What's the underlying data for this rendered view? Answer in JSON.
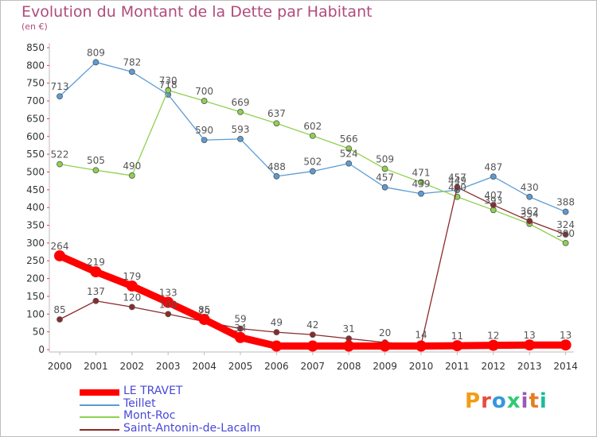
{
  "title": "Evolution du Montant de la Dette par Habitant",
  "subtitle": "(en €)",
  "logo_text": "Proxiti",
  "logo_colors": [
    "#f39c12",
    "#e74c3c",
    "#3498db",
    "#2ecc71",
    "#9b59b6",
    "#e67e22",
    "#1abc9c"
  ],
  "chart_data": {
    "type": "line",
    "title": "Evolution du Montant de la Dette par Habitant",
    "subtitle": "(en €)",
    "xlabel": "",
    "ylabel": "",
    "x": [
      "2000",
      "2001",
      "2002",
      "2003",
      "2004",
      "2005",
      "2006",
      "2007",
      "2008",
      "2009",
      "2010",
      "2011",
      "2012",
      "2013",
      "2014"
    ],
    "ylim": [
      0,
      850
    ],
    "yticks": [
      "0",
      "50",
      "100",
      "150",
      "200",
      "250",
      "300",
      "350",
      "400",
      "450",
      "500",
      "550",
      "600",
      "650",
      "700",
      "750",
      "800",
      "850"
    ],
    "grid": "none",
    "legend_position": "bottom-left",
    "series": [
      {
        "name": "LE TRAVET",
        "color": "#ff0000",
        "values": [
          264,
          219,
          179,
          133,
          85,
          34,
          10,
          10,
          10,
          10,
          10,
          11,
          12,
          13,
          13
        ],
        "labels": [
          "264",
          "219",
          "179",
          "133",
          "85",
          "34",
          "",
          "",
          "",
          "",
          "",
          "11",
          "12",
          "13",
          "13"
        ]
      },
      {
        "name": "Teillet",
        "color": "#5b9bd5",
        "values": [
          713,
          809,
          782,
          718,
          590,
          593,
          488,
          502,
          524,
          457,
          439,
          449,
          487,
          430,
          388
        ],
        "labels": [
          "713",
          "809",
          "782",
          "718",
          "590",
          "593",
          "488",
          "502",
          "524",
          "457",
          "439",
          "449",
          "487",
          "430",
          "388"
        ]
      },
      {
        "name": "Mont-Roc",
        "color": "#8fd14f",
        "values": [
          522,
          505,
          490,
          730,
          700,
          669,
          637,
          602,
          566,
          509,
          471,
          430,
          393,
          354,
          300
        ],
        "labels": [
          "522",
          "505",
          "490",
          "730",
          "700",
          "669",
          "637",
          "602",
          "566",
          "509",
          "471",
          "430",
          "393",
          "354",
          "300"
        ]
      },
      {
        "name": "Saint-Antonin-de-Lacalm",
        "color": "#8b2a2a",
        "values": [
          85,
          137,
          120,
          100,
          79,
          59,
          49,
          42,
          31,
          20,
          14,
          457,
          407,
          362,
          324
        ],
        "labels": [
          "85",
          "137",
          "120",
          "100",
          "79",
          "59",
          "49",
          "42",
          "31",
          "20",
          "14",
          "457",
          "407",
          "362",
          "324"
        ]
      }
    ]
  }
}
